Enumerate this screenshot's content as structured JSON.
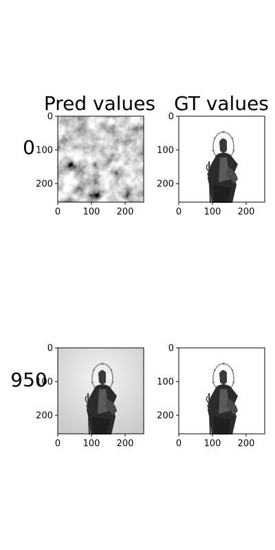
{
  "figure": {
    "column_titles": [
      "Pred values",
      "GT values"
    ],
    "row_labels": [
      "0",
      "950"
    ]
  },
  "chart_data": [
    {
      "type": "image",
      "row_label": "0",
      "title": "Pred values",
      "content": "random grayscale noise texture",
      "xlim": [
        0,
        255
      ],
      "ylim": [
        255,
        0
      ],
      "xticks": [
        0,
        100,
        200
      ],
      "yticks": [
        0,
        100,
        200
      ],
      "xtick_labels": [
        "0",
        "100",
        "200"
      ],
      "ytick_labels": [
        "0",
        "100",
        "200"
      ]
    },
    {
      "type": "image",
      "row_label": "0",
      "title": "GT values",
      "content": "grayscale statue with halo on white background",
      "xlim": [
        0,
        255
      ],
      "ylim": [
        255,
        0
      ],
      "xticks": [
        0,
        100,
        200
      ],
      "yticks": [
        0,
        100,
        200
      ],
      "xtick_labels": [
        "0",
        "100",
        "200"
      ],
      "ytick_labels": [
        "0",
        "100",
        "200"
      ]
    },
    {
      "type": "image",
      "row_label": "950",
      "title": "Pred values",
      "content": "grayscale statue with halo on light gray background",
      "xlim": [
        0,
        255
      ],
      "ylim": [
        255,
        0
      ],
      "xticks": [
        0,
        100,
        200
      ],
      "yticks": [
        0,
        100,
        200
      ],
      "xtick_labels": [
        "0",
        "100",
        "200"
      ],
      "ytick_labels": [
        "0",
        "100",
        "200"
      ]
    },
    {
      "type": "image",
      "row_label": "950",
      "title": "GT values",
      "content": "grayscale statue with halo on white background",
      "xlim": [
        0,
        255
      ],
      "ylim": [
        255,
        0
      ],
      "xticks": [
        0,
        100,
        200
      ],
      "yticks": [
        0,
        100,
        200
      ],
      "xtick_labels": [
        "0",
        "100",
        "200"
      ],
      "ytick_labels": [
        "0",
        "100",
        "200"
      ]
    }
  ]
}
